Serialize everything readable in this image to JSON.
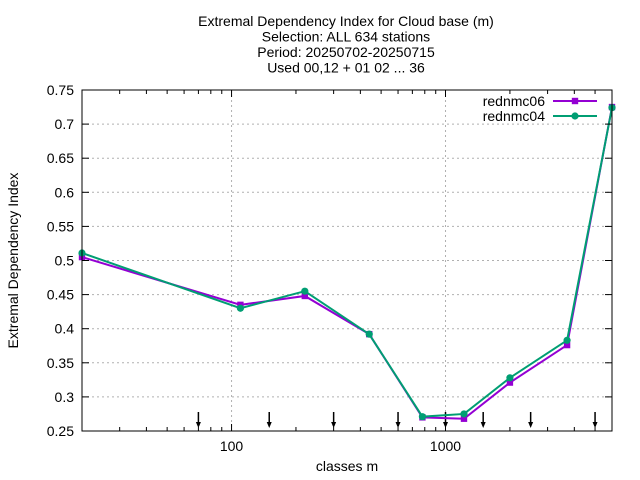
{
  "chart_data": {
    "type": "line",
    "title_lines": [
      "Extremal Dependency Index  for Cloud base (m)",
      "Selection: ALL    634 stations",
      "Period: 20250702-20250715",
      "Used 00,12 + 01 02 ... 36"
    ],
    "xlabel": "classes m",
    "ylabel": "Extremal Dependency Index",
    "xscale": "log",
    "xlim": [
      20,
      6000
    ],
    "ylim": [
      0.25,
      0.75
    ],
    "x_ticks": [
      100,
      1000
    ],
    "x_tick_labels": [
      "100",
      "1000"
    ],
    "y_ticks": [
      0.25,
      0.3,
      0.35,
      0.4,
      0.45,
      0.5,
      0.55,
      0.6,
      0.65,
      0.7,
      0.75
    ],
    "y_tick_labels": [
      "0.25",
      "0.3",
      "0.35",
      "0.4",
      "0.45",
      "0.5",
      "0.55",
      "0.6",
      "0.65",
      "0.7",
      "0.75"
    ],
    "grid": true,
    "legend_position": "top-right",
    "threshold_markers": [
      70,
      150,
      300,
      600,
      1000,
      1500,
      2500,
      5000
    ],
    "series": [
      {
        "name": "rednmc06",
        "color": "#9400d3",
        "marker": "square",
        "x": [
          20,
          110,
          220,
          440,
          780,
          1220,
          2000,
          3700,
          6000
        ],
        "y": [
          0.505,
          0.435,
          0.448,
          0.392,
          0.27,
          0.268,
          0.321,
          0.376,
          0.725
        ]
      },
      {
        "name": "rednmc04",
        "color": "#009e73",
        "marker": "circle",
        "x": [
          20,
          110,
          220,
          440,
          780,
          1220,
          2000,
          3700,
          6000
        ],
        "y": [
          0.511,
          0.43,
          0.455,
          0.392,
          0.271,
          0.275,
          0.328,
          0.383,
          0.724
        ]
      }
    ]
  }
}
